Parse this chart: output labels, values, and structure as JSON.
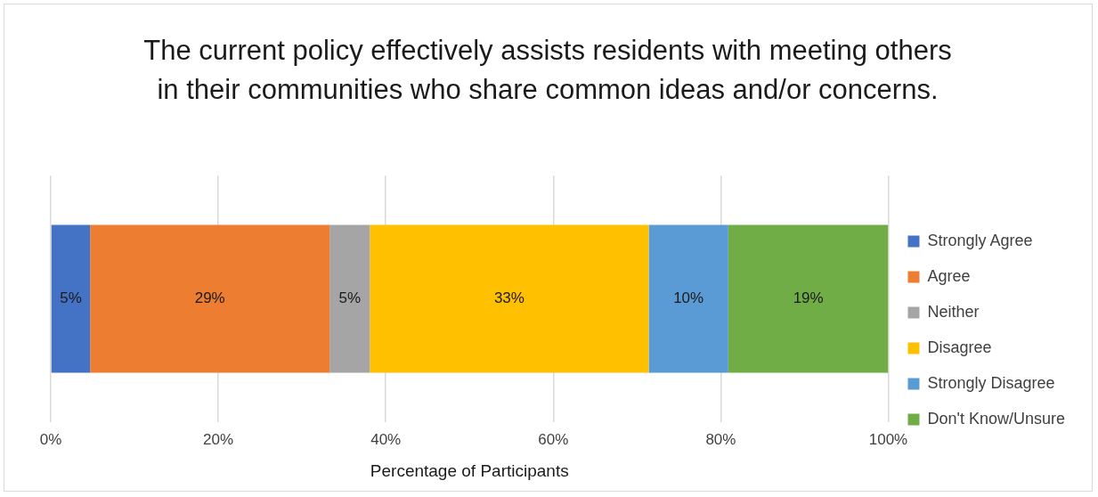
{
  "chart_data": {
    "type": "bar",
    "orientation": "horizontal",
    "stacked": true,
    "title": "The current policy effectively assists residents with meeting others in their communities who share common ideas and/or concerns.",
    "xlabel": "Percentage of Participants",
    "categories": [
      null
    ],
    "series": [
      {
        "name": "Strongly Agree",
        "color": "#4472c4",
        "values": [
          4.7
        ],
        "value_labels": [
          "5%"
        ]
      },
      {
        "name": "Agree",
        "color": "#ed7d31",
        "values": [
          28.6
        ],
        "value_labels": [
          "29%"
        ]
      },
      {
        "name": "Neither",
        "color": "#a5a5a5",
        "values": [
          4.8
        ],
        "value_labels": [
          "5%"
        ]
      },
      {
        "name": "Disagree",
        "color": "#ffc000",
        "values": [
          33.3
        ],
        "value_labels": [
          "33%"
        ]
      },
      {
        "name": "Strongly Disagree",
        "color": "#5b9bd5",
        "values": [
          9.5
        ],
        "value_labels": [
          "10%"
        ]
      },
      {
        "name": "Don't Know/Unsure",
        "color": "#70ad47",
        "values": [
          19.1
        ],
        "value_labels": [
          "19%"
        ]
      }
    ],
    "xlim": [
      0,
      100
    ],
    "xticks": [
      {
        "value": 0,
        "label": "0%"
      },
      {
        "value": 20,
        "label": "20%"
      },
      {
        "value": 40,
        "label": "40%"
      },
      {
        "value": 60,
        "label": "60%"
      },
      {
        "value": 80,
        "label": "80%"
      },
      {
        "value": 100,
        "label": "100%"
      }
    ],
    "grid": "x",
    "legend": "right"
  }
}
